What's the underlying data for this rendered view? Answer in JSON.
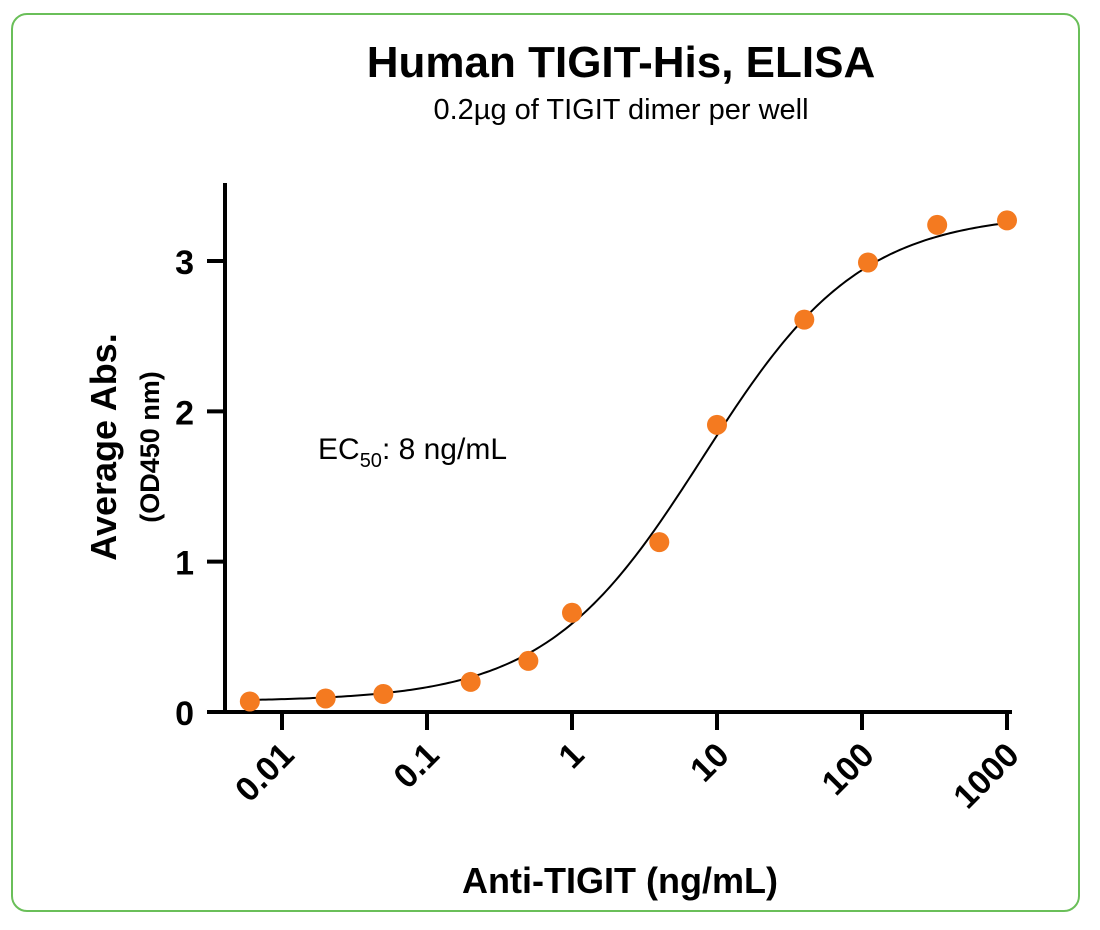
{
  "chart_data": {
    "type": "scatter",
    "title": "Human TIGIT-His, ELISA",
    "subtitle": "0.2µg of TIGIT dimer per well",
    "xlabel": "Anti-TIGIT (ng/mL)",
    "ylabel": "Average Abs.",
    "ylabel_sub": "(OD450 nm)",
    "x_scale": "log",
    "xlim": [
      0.004,
      1200
    ],
    "ylim": [
      0,
      3.5
    ],
    "x_ticks": [
      0.01,
      0.1,
      1,
      10,
      100,
      1000
    ],
    "x_tick_labels": [
      "0.01",
      "0.1",
      "1",
      "10",
      "100",
      "1000"
    ],
    "y_ticks": [
      0,
      1,
      2,
      3
    ],
    "y_tick_labels": [
      "0",
      "1",
      "2",
      "3"
    ],
    "series": [
      {
        "color": "#f47a20",
        "x": [
          0.006,
          0.02,
          0.05,
          0.2,
          0.5,
          1,
          4,
          10,
          40,
          110,
          330,
          1000
        ],
        "y": [
          0.07,
          0.09,
          0.12,
          0.2,
          0.34,
          0.66,
          1.13,
          1.91,
          2.61,
          2.99,
          3.24,
          3.27
        ]
      }
    ],
    "fit_curve": {
      "model": "4PL",
      "bottom": 0.07,
      "top": 3.32,
      "ec50": 8,
      "hill": 0.8,
      "color": "#000000"
    },
    "annotation": {
      "label": "EC",
      "subscript": "50",
      "text": ": 8 ng/mL"
    },
    "grid": false,
    "legend": "none"
  }
}
